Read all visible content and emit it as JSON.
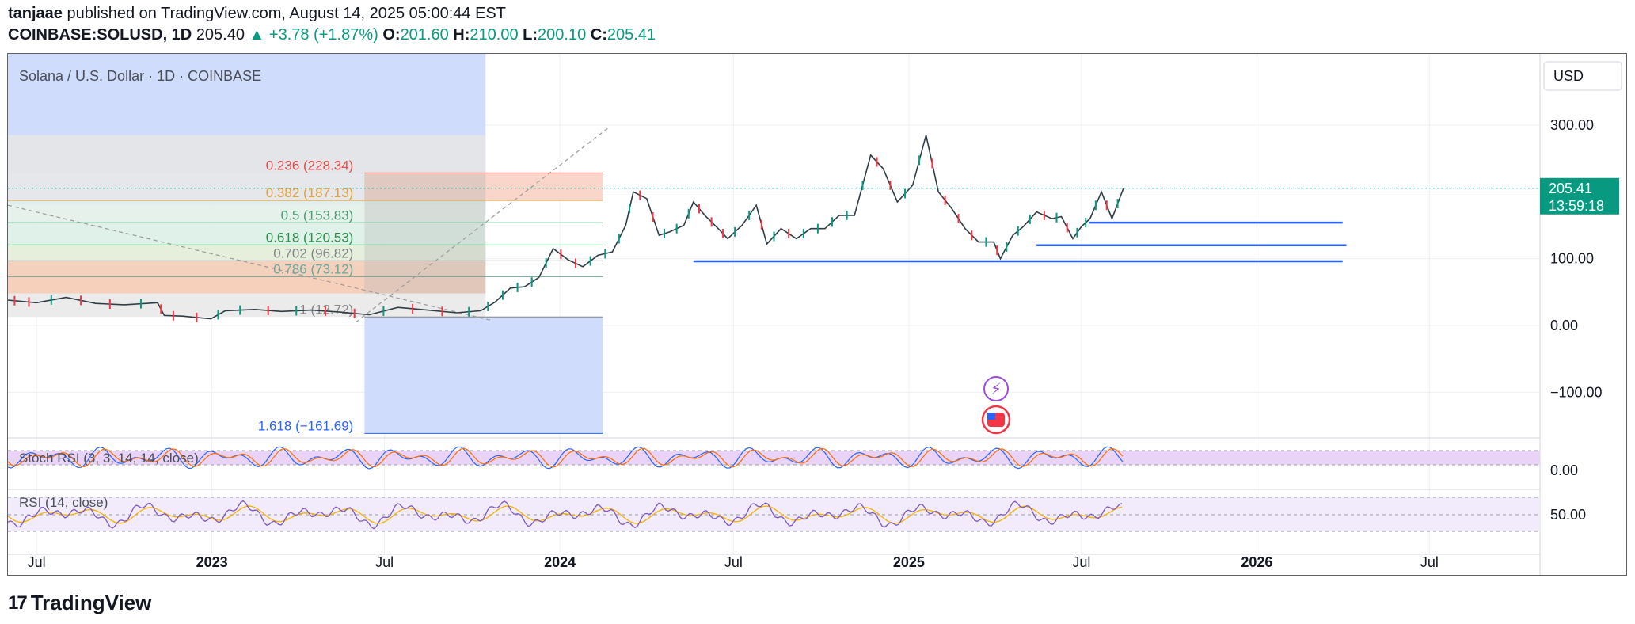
{
  "header": {
    "author": "tanjaae",
    "published_text": "published on TradingView.com, August 14, 2025 05:00:44 EST",
    "symbol": "COINBASE:SOLUSD, 1D",
    "last": "205.40",
    "change": "▲ +3.78 (+1.87%)",
    "o_label": "O:",
    "o": "201.60",
    "h_label": "H:",
    "h": "210.00",
    "l_label": "L:",
    "l": "200.10",
    "c_label": "C:",
    "c": "205.41"
  },
  "chart_data": {
    "type": "candlestick",
    "title": "Solana / U.S. Dollar · 1D · COINBASE",
    "currency": "USD",
    "price_axis_ticks": [
      300,
      200,
      100,
      0,
      -100
    ],
    "price_axis_labels": [
      "300.00",
      "100.00",
      "0.00",
      "−100.00"
    ],
    "price_range": [
      -165,
      395
    ],
    "current_price": "205.41",
    "countdown": "13:59:18",
    "time_axis_labels": [
      "Jul",
      "2023",
      "Jul",
      "2024",
      "Jul",
      "2025",
      "Jul",
      "2026",
      "Jul"
    ],
    "time_axis_bold": [
      false,
      true,
      false,
      true,
      false,
      true,
      false,
      true,
      false
    ],
    "time_axis_dates": [
      "2022-07-01",
      "2023-01-01",
      "2023-07-01",
      "2024-01-01",
      "2024-07-01",
      "2025-01-01",
      "2025-07-01",
      "2026-01-01",
      "2026-07-01"
    ],
    "price_series_path": [
      [
        "2022-06-01",
        38
      ],
      [
        "2022-06-15",
        36
      ],
      [
        "2022-07-01",
        34
      ],
      [
        "2022-08-01",
        42
      ],
      [
        "2022-09-01",
        33
      ],
      [
        "2022-10-01",
        31
      ],
      [
        "2022-11-05",
        34
      ],
      [
        "2022-11-12",
        15
      ],
      [
        "2022-12-01",
        14
      ],
      [
        "2022-12-31",
        10
      ],
      [
        "2023-01-15",
        22
      ],
      [
        "2023-02-15",
        24
      ],
      [
        "2023-03-15",
        21
      ],
      [
        "2023-04-15",
        23
      ],
      [
        "2023-05-15",
        20
      ],
      [
        "2023-06-15",
        16
      ],
      [
        "2023-07-15",
        27
      ],
      [
        "2023-08-15",
        23
      ],
      [
        "2023-09-15",
        19
      ],
      [
        "2023-10-10",
        22
      ],
      [
        "2023-10-25",
        35
      ],
      [
        "2023-11-10",
        56
      ],
      [
        "2023-11-25",
        58
      ],
      [
        "2023-12-10",
        72
      ],
      [
        "2023-12-25",
        115
      ],
      [
        "2024-01-10",
        98
      ],
      [
        "2024-01-25",
        88
      ],
      [
        "2024-02-10",
        105
      ],
      [
        "2024-02-25",
        110
      ],
      [
        "2024-03-10",
        150
      ],
      [
        "2024-03-18",
        200
      ],
      [
        "2024-04-01",
        190
      ],
      [
        "2024-04-14",
        135
      ],
      [
        "2024-04-25",
        140
      ],
      [
        "2024-05-10",
        150
      ],
      [
        "2024-05-20",
        185
      ],
      [
        "2024-06-01",
        165
      ],
      [
        "2024-06-15",
        145
      ],
      [
        "2024-06-25",
        130
      ],
      [
        "2024-07-10",
        150
      ],
      [
        "2024-07-25",
        180
      ],
      [
        "2024-08-05",
        122
      ],
      [
        "2024-08-20",
        145
      ],
      [
        "2024-09-05",
        130
      ],
      [
        "2024-09-20",
        145
      ],
      [
        "2024-10-05",
        145
      ],
      [
        "2024-10-20",
        165
      ],
      [
        "2024-11-05",
        165
      ],
      [
        "2024-11-22",
        255
      ],
      [
        "2024-12-05",
        235
      ],
      [
        "2024-12-20",
        185
      ],
      [
        "2025-01-05",
        210
      ],
      [
        "2025-01-19",
        285
      ],
      [
        "2025-02-01",
        200
      ],
      [
        "2025-02-15",
        175
      ],
      [
        "2025-03-01",
        145
      ],
      [
        "2025-03-15",
        125
      ],
      [
        "2025-03-31",
        125
      ],
      [
        "2025-04-07",
        100
      ],
      [
        "2025-04-20",
        135
      ],
      [
        "2025-05-01",
        148
      ],
      [
        "2025-05-15",
        170
      ],
      [
        "2025-05-31",
        160
      ],
      [
        "2025-06-10",
        163
      ],
      [
        "2025-06-22",
        130
      ],
      [
        "2025-07-01",
        148
      ],
      [
        "2025-07-10",
        160
      ],
      [
        "2025-07-22",
        200
      ],
      [
        "2025-08-02",
        160
      ],
      [
        "2025-08-14",
        205
      ]
    ],
    "fib_retracement": {
      "levels": [
        {
          "ratio": "0.236",
          "price": 228.34,
          "label": "0.236 (228.34)",
          "color": "#e04a4a"
        },
        {
          "ratio": "0.382",
          "price": 187.13,
          "label": "0.382 (187.13)",
          "color": "#e3a23b"
        },
        {
          "ratio": "0.5",
          "price": 153.83,
          "label": "0.5 (153.83)",
          "color": "#4a9a70"
        },
        {
          "ratio": "0.618",
          "price": 120.53,
          "label": "0.618 (120.53)",
          "color": "#2d8f4e"
        },
        {
          "ratio": "0.702",
          "price": 96.82,
          "label": "0.702 (96.82)",
          "color": "#848484"
        },
        {
          "ratio": "0.786",
          "price": 73.12,
          "label": "0.786 (73.12)",
          "color": "#6aa79a"
        },
        {
          "ratio": "1",
          "price": 12.72,
          "label": "1 (12.72)",
          "color": "#848484"
        },
        {
          "ratio": "1.618",
          "price": -161.69,
          "label": "1.618 (−161.69)",
          "color": "#2962ff"
        }
      ]
    },
    "support_lines": [
      {
        "price": 154,
        "from": "2025-07-09",
        "to": "2026-04-01"
      },
      {
        "price": 120,
        "from": "2025-05-15",
        "to": "2026-04-05"
      },
      {
        "price": 96,
        "from": "2024-05-20",
        "to": "2026-04-01"
      }
    ],
    "indicators": [
      {
        "name": "Stoch RSI",
        "label": "Stoch RSI (3, 3, 14, 14, close)",
        "axis_label": "0.00",
        "band": [
          20,
          80
        ]
      },
      {
        "name": "RSI",
        "label": "RSI (14, close)",
        "axis_label": "50.00",
        "band": [
          30,
          70
        ]
      }
    ]
  },
  "footer": {
    "brand": "TradingView",
    "logo": "17"
  },
  "colors": {
    "up": "#089981",
    "down": "#f23645",
    "grid": "#eef0f3",
    "support": "#2962ff",
    "blue_zone": "#cfdcfb",
    "stoch_band": "#e9d4f8",
    "rsi_band": "#f1ebfb",
    "rsi_line": "#7e57c2",
    "rsi_ma": "#f5b400",
    "stoch_k": "#2962ff",
    "stoch_d": "#ff6d00"
  }
}
